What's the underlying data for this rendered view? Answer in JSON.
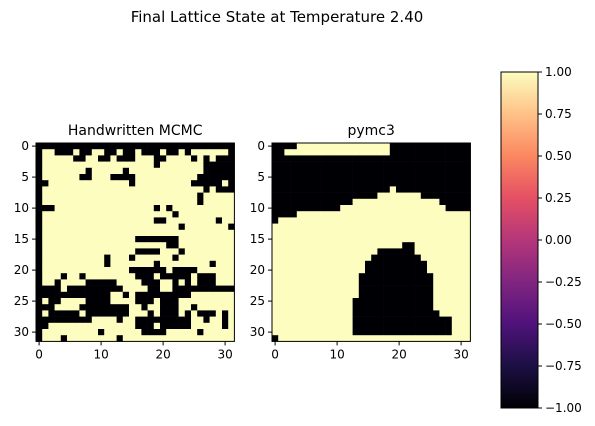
{
  "figure": {
    "suptitle": "Final Lattice State at Temperature 2.40"
  },
  "chart_data": [
    {
      "type": "heatmap",
      "title": "Handwritten MCMC",
      "size": [
        32,
        32
      ],
      "value_range": [
        -1,
        1
      ],
      "colormap": "magma",
      "x_ticks": [
        0,
        10,
        20,
        30
      ],
      "y_ticks": [
        0,
        5,
        10,
        15,
        20,
        25,
        30
      ],
      "encoding": "rows top-to-bottom, '1' = +1 (light), '0' = -1 (black)",
      "grid": [
        "00000000000000000000000000000000",
        "01100010011001001000100101111110",
        "01111100110010001110011110101000",
        "01111111111111111110111111100000",
        "01111111011111011111111111100000",
        "01111110011100001111111111000000",
        "00111111111111101111111110000010",
        "01111111111111111111111111101000",
        "01111111111111111111111111011111",
        "01111111111111111111111111011111",
        "00011111111111111110101111111111",
        "01111111111111111111110111111111",
        "01111111111111111110011111111011",
        "01111111111111111111111011111110",
        "01111111111111111111111111111111",
        "01111111111111110000000111111111",
        "01111111111111111111100111111111",
        "01111111111111110000111011111111",
        "01111111111011101111110111111111",
        "01111111111011111110111111110111",
        "01111111111111100000010000111111",
        "01110110111111110001000001000111",
        "01101111000001111000110101000111",
        "00001000000000111100110000000000",
        "00000000000011010000000001111111",
        "01001111000011110001000111111111",
        "00011110000000011011000110111111",
        "01000001000000011101000101000101",
        "00000000011110110000000001101101",
        "00111111111111110001000001111101",
        "01111111110111111000011111011111",
        "01110111111110111111111111111111"
      ]
    },
    {
      "type": "heatmap",
      "title": "pymc3",
      "size": [
        32,
        32
      ],
      "value_range": [
        -1,
        1
      ],
      "colormap": "magma",
      "x_ticks": [
        0,
        10,
        20,
        30
      ],
      "y_ticks": [
        0,
        5,
        10,
        15,
        20,
        25,
        30
      ],
      "encoding": "rows top-to-bottom, '1' = +1 (light), '0' = -1 (black)",
      "grid": [
        "00001111111111111110000000000000",
        "00111111111111111110000000000000",
        "00000000000000000000000000000000",
        "00000000000000000000000000000000",
        "00000000000000000000000000000000",
        "00000000000000000000000000000000",
        "00000000000000000000000000000000",
        "00000000000000000001000000000000",
        "00000000000000000111111100000000",
        "00000000000001111111111111100000",
        "00000000000111111111111111110000",
        "00001111111111111111111111111111",
        "01111111111111111111111111111111",
        "11111111111111111111111111111111",
        "11111111111111111111111111111111",
        "11111111111111111111111111111111",
        "11111111111111111111100111111111",
        "11111111111111111000000111111111",
        "11111111111111110000000011111111",
        "11111111111111100000000001111111",
        "11111111111111100000000001111111",
        "11111111111111000000000000111111",
        "11111111111111000000000000111111",
        "11111111111111000000000000111111",
        "11111111111111000000000000111111",
        "11111111111110000000000000111111",
        "11111111111110000000000000111111",
        "11111111111110000000000000011111",
        "11111111111110000000000000000111",
        "11111111111110000000000000000111",
        "11111111111110000000000000000111",
        "01111111111111111111111111111111"
      ]
    }
  ],
  "colorbar": {
    "range": [
      -1.0,
      1.0
    ],
    "ticks": [
      "1.00",
      "0.75",
      "0.50",
      "0.25",
      "0.00",
      "−0.25",
      "−0.50",
      "−0.75",
      "−1.00"
    ],
    "colormap": "magma",
    "colors": {
      "low": "#000004",
      "high": "#fcfdbf"
    }
  }
}
